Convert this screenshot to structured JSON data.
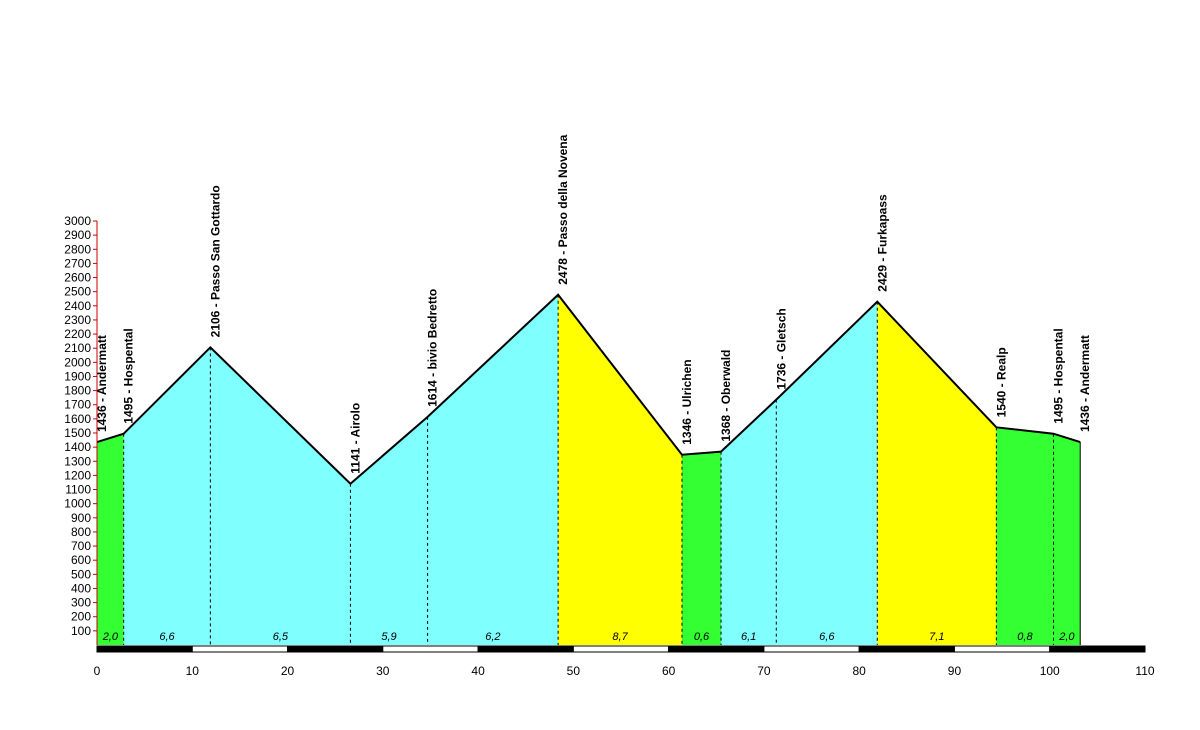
{
  "chart_data": {
    "type": "area",
    "xlim": [
      0,
      110
    ],
    "ylim": [
      0,
      3000
    ],
    "x_ticks": [
      0,
      10,
      20,
      30,
      40,
      50,
      60,
      70,
      80,
      90,
      100,
      110
    ],
    "y_ticks": [
      100,
      200,
      300,
      400,
      500,
      600,
      700,
      800,
      900,
      1000,
      1100,
      1200,
      1300,
      1400,
      1500,
      1600,
      1700,
      1800,
      1900,
      2000,
      2100,
      2200,
      2300,
      2400,
      2500,
      2600,
      2700,
      2800,
      2900,
      3000
    ],
    "waypoints": [
      {
        "km": 0.0,
        "elevation": 1436,
        "label": "1436 - Andermatt"
      },
      {
        "km": 2.8,
        "elevation": 1495,
        "label": "1495 - Hospental"
      },
      {
        "km": 11.9,
        "elevation": 2106,
        "label": "2106 - Passo San Gottardo"
      },
      {
        "km": 26.6,
        "elevation": 1141,
        "label": "1141 - Airolo"
      },
      {
        "km": 34.7,
        "elevation": 1614,
        "label": "1614 - bivio Bedretto"
      },
      {
        "km": 48.4,
        "elevation": 2478,
        "label": "2478 - Passo della Novena"
      },
      {
        "km": 61.4,
        "elevation": 1346,
        "label": "1346 - Ulrichen"
      },
      {
        "km": 65.5,
        "elevation": 1368,
        "label": "1368 - Oberwald"
      },
      {
        "km": 71.3,
        "elevation": 1736,
        "label": "1736 - Gletsch"
      },
      {
        "km": 81.9,
        "elevation": 2429,
        "label": "2429 - Furkapass"
      },
      {
        "km": 94.4,
        "elevation": 1540,
        "label": "1540 - Realp"
      },
      {
        "km": 100.4,
        "elevation": 1495,
        "label": "1495 - Hospental"
      },
      {
        "km": 103.2,
        "elevation": 1436,
        "label": "1436 - Andermatt"
      }
    ],
    "segments": [
      {
        "from": 0.0,
        "to": 2.8,
        "grade": "2,0",
        "color": "#33ff33"
      },
      {
        "from": 2.8,
        "to": 11.9,
        "grade": "6,6",
        "color": "#80ffff"
      },
      {
        "from": 11.9,
        "to": 26.6,
        "grade": "6,5",
        "color": "#80ffff"
      },
      {
        "from": 26.6,
        "to": 34.7,
        "grade": "5,9",
        "color": "#80ffff"
      },
      {
        "from": 34.7,
        "to": 48.4,
        "grade": "6,2",
        "color": "#80ffff"
      },
      {
        "from": 48.4,
        "to": 61.4,
        "grade": "8,7",
        "color": "#ffff00"
      },
      {
        "from": 61.4,
        "to": 65.5,
        "grade": "0,6",
        "color": "#33ff33"
      },
      {
        "from": 65.5,
        "to": 71.3,
        "grade": "6,1",
        "color": "#80ffff"
      },
      {
        "from": 71.3,
        "to": 81.9,
        "grade": "6,6",
        "color": "#80ffff"
      },
      {
        "from": 81.9,
        "to": 94.4,
        "grade": "7,1",
        "color": "#ffff00"
      },
      {
        "from": 94.4,
        "to": 100.4,
        "grade": "0,8",
        "color": "#33ff33"
      },
      {
        "from": 100.4,
        "to": 103.2,
        "grade": "2,0",
        "color": "#33ff33"
      }
    ],
    "colors": {
      "line": "#000000",
      "axis": "#cc0000",
      "scale_dark": "#000000",
      "scale_light": "#ffffff"
    }
  }
}
